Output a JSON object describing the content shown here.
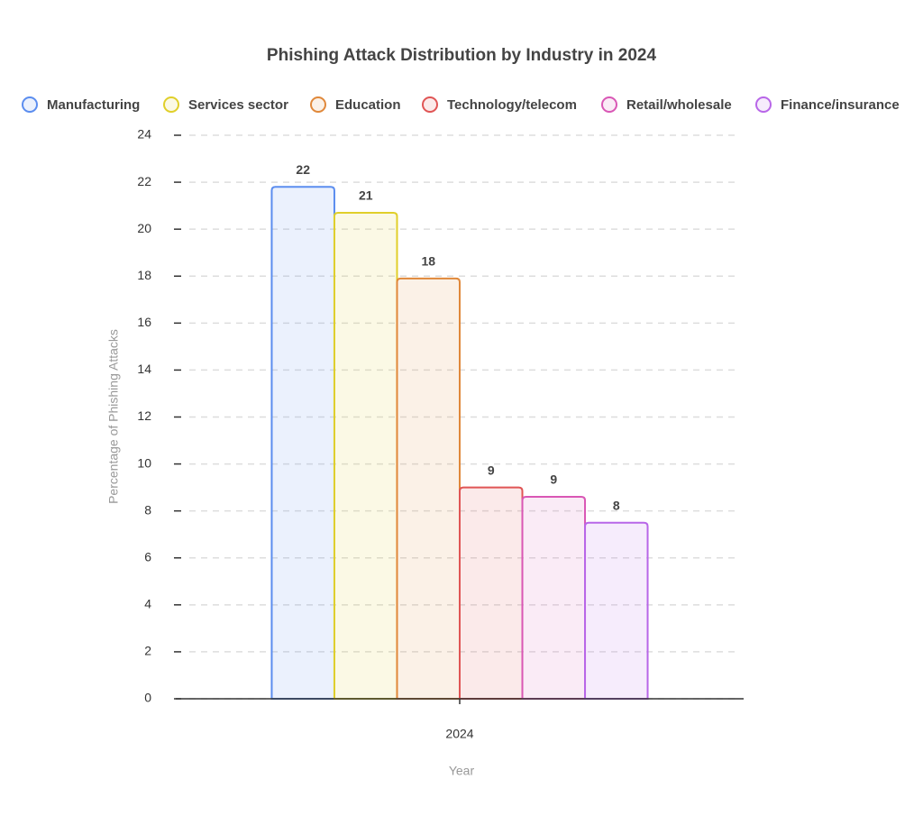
{
  "chart_data": {
    "type": "bar",
    "title": "Phishing Attack Distribution by Industry in 2024",
    "x_label": "Year",
    "y_label": "Percentage of Phishing Attacks",
    "categories": [
      "2024"
    ],
    "series": [
      {
        "name": "Manufacturing",
        "color": "#5b8def",
        "values": [
          21.8
        ],
        "value_labels": [
          "22"
        ]
      },
      {
        "name": "Services sector",
        "color": "#e0cf2a",
        "values": [
          20.7
        ],
        "value_labels": [
          "21"
        ]
      },
      {
        "name": "Education",
        "color": "#e0883a",
        "values": [
          17.9
        ],
        "value_labels": [
          "18"
        ]
      },
      {
        "name": "Technology/telecom",
        "color": "#e05555",
        "values": [
          9.0
        ],
        "value_labels": [
          "9"
        ]
      },
      {
        "name": "Retail/wholesale",
        "color": "#d957b5",
        "values": [
          8.6
        ],
        "value_labels": [
          "9"
        ]
      },
      {
        "name": "Finance/insurance",
        "color": "#b866e8",
        "values": [
          7.5
        ],
        "value_labels": [
          "8"
        ]
      }
    ],
    "ylim": [
      0,
      24
    ],
    "yticks": [
      0,
      2,
      4,
      6,
      8,
      10,
      12,
      14,
      16,
      18,
      20,
      22,
      24
    ],
    "grid": true
  }
}
